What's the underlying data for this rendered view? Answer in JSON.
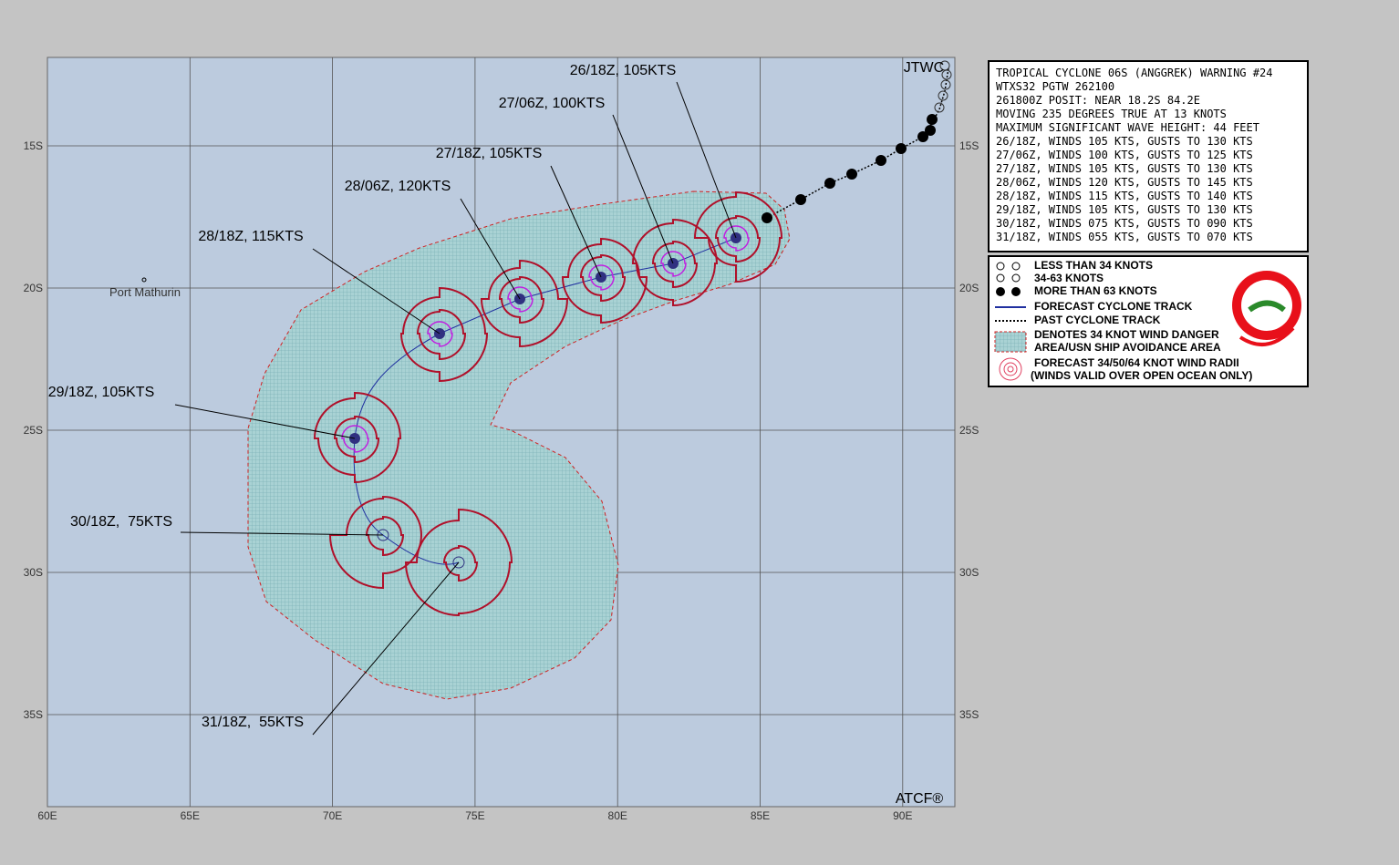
{
  "header": {
    "agency": "JTWC",
    "software": "ATCF®"
  },
  "axes": {
    "lon_labels": [
      "60E",
      "65E",
      "70E",
      "75E",
      "80E",
      "85E",
      "90E"
    ],
    "lat_labels": [
      "15S",
      "20S",
      "25S",
      "30S",
      "35S"
    ]
  },
  "places": [
    {
      "label": "Port Mathurin"
    }
  ],
  "forecast_labels": [
    "26/18Z, 105KTS",
    "27/06Z, 100KTS",
    "27/18Z, 105KTS",
    "28/06Z, 120KTS",
    "28/18Z, 115KTS",
    "29/18Z, 105KTS",
    "30/18Z,  75KTS",
    "31/18Z,  55KTS"
  ],
  "warning": {
    "lines": [
      "TROPICAL CYCLONE 06S (ANGGREK) WARNING #24",
      "WTXS32 PGTW 262100",
      "261800Z POSIT: NEAR 18.2S 84.2E",
      "MOVING 235 DEGREES TRUE AT 13 KNOTS",
      "MAXIMUM SIGNIFICANT WAVE HEIGHT: 44 FEET",
      "26/18Z, WINDS 105 KTS, GUSTS TO 130 KTS",
      "27/06Z, WINDS 100 KTS, GUSTS TO 125 KTS",
      "27/18Z, WINDS 105 KTS, GUSTS TO 130 KTS",
      "28/06Z, WINDS 120 KTS, GUSTS TO 145 KTS",
      "28/18Z, WINDS 115 KTS, GUSTS TO 140 KTS",
      "29/18Z, WINDS 105 KTS, GUSTS TO 130 KTS",
      "30/18Z, WINDS 075 KTS, GUSTS TO 090 KTS",
      "31/18Z, WINDS 055 KTS, GUSTS TO 070 KTS"
    ]
  },
  "legend": {
    "items": [
      "LESS THAN 34 KNOTS",
      "34-63 KNOTS",
      "MORE THAN 63 KNOTS",
      "FORECAST CYCLONE TRACK",
      "PAST CYCLONE TRACK",
      "DENOTES 34 KNOT WIND DANGER",
      "AREA/USN SHIP AVOIDANCE AREA",
      "FORECAST 34/50/64 KNOT WIND RADII",
      "(WINDS VALID OVER OPEN OCEAN ONLY)"
    ]
  }
}
